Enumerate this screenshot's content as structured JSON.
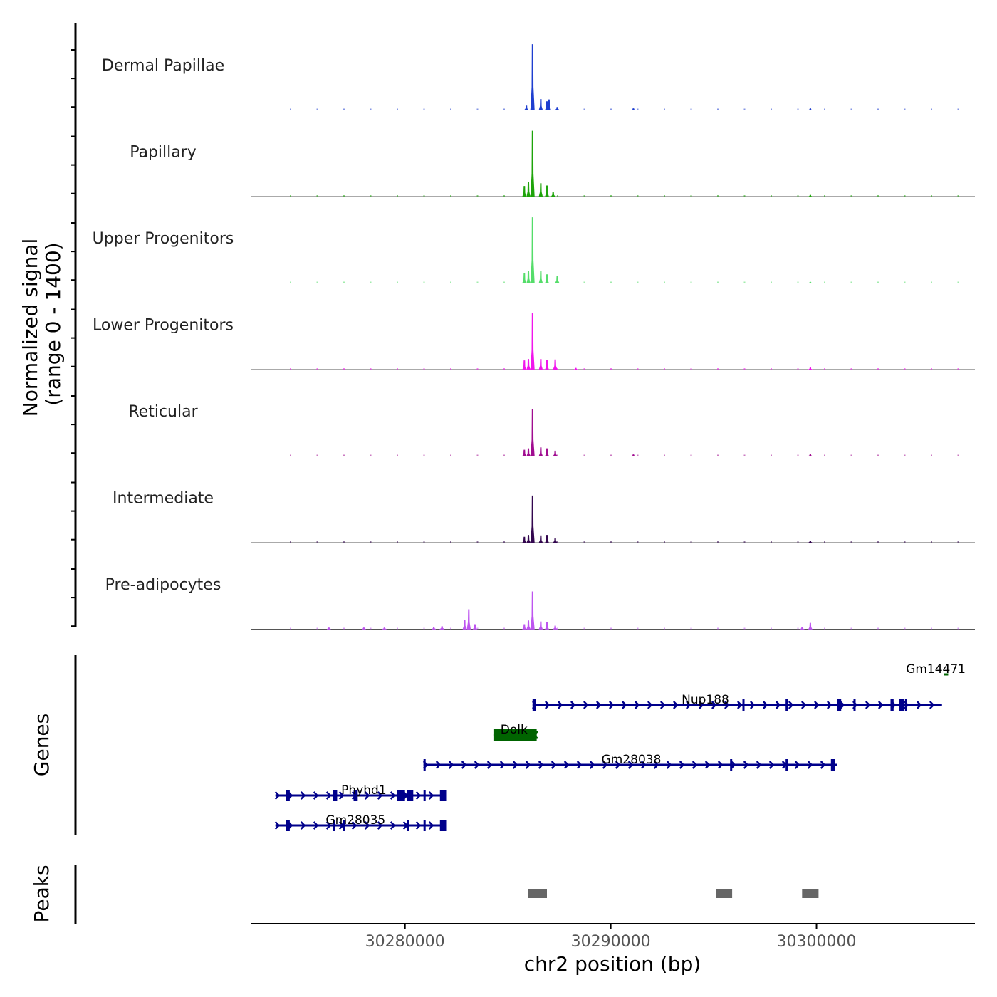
{
  "chart_data": {
    "type": "area",
    "title": "",
    "ylabel_line1": "Normalized signal",
    "ylabel_line2": "(range 0 - 1400)",
    "xlabel": "chr2 position (bp)",
    "chromosome": "chr2",
    "xlim": [
      30272500,
      30307700
    ],
    "ylim": [
      0,
      1400
    ],
    "x_ticks": [
      30280000,
      30290000,
      30300000
    ],
    "x_tick_labels": [
      "30280000",
      "30290000",
      "30300000"
    ],
    "tracks": [
      {
        "name": "Dermal Papillae",
        "color": "#1f3fd0",
        "peaks": [
          [
            30286200,
            1400,
            70
          ],
          [
            30286600,
            230,
            60
          ],
          [
            30286900,
            180,
            60
          ],
          [
            30287000,
            220,
            70
          ],
          [
            30285900,
            90,
            70
          ],
          [
            30287400,
            60,
            80
          ],
          [
            30291100,
            30,
            60
          ],
          [
            30299700,
            30,
            60
          ]
        ]
      },
      {
        "name": "Papillary",
        "color": "#1ea40a",
        "peaks": [
          [
            30286200,
            1400,
            70
          ],
          [
            30285800,
            220,
            70
          ],
          [
            30286000,
            300,
            60
          ],
          [
            30286600,
            280,
            60
          ],
          [
            30286900,
            230,
            60
          ],
          [
            30287200,
            100,
            70
          ],
          [
            30299700,
            30,
            60
          ]
        ]
      },
      {
        "name": "Upper Progenitors",
        "color": "#55dd6a",
        "peaks": [
          [
            30286200,
            1400,
            70
          ],
          [
            30285800,
            200,
            70
          ],
          [
            30286000,
            260,
            60
          ],
          [
            30286600,
            250,
            60
          ],
          [
            30286900,
            180,
            60
          ],
          [
            30287400,
            150,
            80
          ],
          [
            30299700,
            20,
            60
          ]
        ]
      },
      {
        "name": "Lower Progenitors",
        "color": "#f116ec",
        "peaks": [
          [
            30286200,
            1200,
            70
          ],
          [
            30285800,
            190,
            70
          ],
          [
            30286000,
            220,
            60
          ],
          [
            30286600,
            220,
            60
          ],
          [
            30286900,
            200,
            60
          ],
          [
            30287300,
            210,
            80
          ],
          [
            30288300,
            30,
            60
          ],
          [
            30299700,
            40,
            60
          ]
        ]
      },
      {
        "name": "Reticular",
        "color": "#a00d90",
        "peaks": [
          [
            30286200,
            1000,
            70
          ],
          [
            30285800,
            130,
            70
          ],
          [
            30286000,
            160,
            60
          ],
          [
            30286600,
            180,
            60
          ],
          [
            30286900,
            160,
            60
          ],
          [
            30287300,
            110,
            80
          ],
          [
            30291100,
            30,
            60
          ],
          [
            30299700,
            40,
            60
          ]
        ]
      },
      {
        "name": "Intermediate",
        "color": "#33074f",
        "peaks": [
          [
            30286200,
            1000,
            70
          ],
          [
            30285800,
            120,
            70
          ],
          [
            30286000,
            160,
            60
          ],
          [
            30286600,
            150,
            60
          ],
          [
            30286900,
            160,
            60
          ],
          [
            30287300,
            100,
            80
          ],
          [
            30299700,
            40,
            60
          ]
        ]
      },
      {
        "name": "Pre-adipocytes",
        "color": "#be55f0",
        "peaks": [
          [
            30286200,
            800,
            70
          ],
          [
            30285800,
            100,
            70
          ],
          [
            30286000,
            180,
            60
          ],
          [
            30286600,
            160,
            60
          ],
          [
            30286900,
            150,
            60
          ],
          [
            30287300,
            70,
            80
          ],
          [
            30283100,
            420,
            60
          ],
          [
            30282900,
            200,
            60
          ],
          [
            30283400,
            100,
            70
          ],
          [
            30281400,
            40,
            80
          ],
          [
            30281800,
            60,
            80
          ],
          [
            30278000,
            30,
            80
          ],
          [
            30276300,
            30,
            80
          ],
          [
            30279000,
            30,
            80
          ],
          [
            30299700,
            130,
            60
          ],
          [
            30299300,
            40,
            60
          ]
        ]
      }
    ],
    "genes_label": "Genes",
    "genes": [
      {
        "name": "Gm14471",
        "strand": "-",
        "color": "#006400",
        "start": 30306200,
        "end": 30306400,
        "row": 0,
        "exons": [],
        "label_x": 30305800
      },
      {
        "name": "Nup188",
        "strand": "+",
        "color": "#00008b",
        "start": 30286200,
        "end": 30306100,
        "row": 1,
        "exons": [
          [
            30286200,
            30286350
          ],
          [
            30296400,
            30296500
          ],
          [
            30298500,
            30298600
          ],
          [
            30301000,
            30301200
          ],
          [
            30301800,
            30301900
          ],
          [
            30303600,
            30303750
          ],
          [
            30304000,
            30304250
          ],
          [
            30304300,
            30304400
          ]
        ],
        "label_x": 30294600
      },
      {
        "name": "Dolk",
        "strand": "-",
        "color": "#006400",
        "start": 30284300,
        "end": 30286400,
        "row": 2,
        "exons": [
          [
            30284300,
            30286400
          ]
        ],
        "label_x": 30285300
      },
      {
        "name": "Gm28038",
        "strand": "+",
        "color": "#00008b",
        "start": 30280900,
        "end": 30301000,
        "row": 3,
        "exons": [
          [
            30280900,
            30281000
          ],
          [
            30295800,
            30295900
          ],
          [
            30298500,
            30298600
          ],
          [
            30300700,
            30300900
          ]
        ],
        "label_x": 30291000
      },
      {
        "name": "Phyhd1",
        "strand": "+",
        "color": "#00008b",
        "start": 30273700,
        "end": 30282000,
        "row": 4,
        "exons": [
          [
            30274200,
            30274400
          ],
          [
            30276500,
            30276700
          ],
          [
            30277500,
            30277700
          ],
          [
            30279600,
            30280000
          ],
          [
            30280100,
            30280400
          ],
          [
            30280900,
            30281000
          ],
          [
            30281700,
            30282000
          ]
        ],
        "label_x": 30278000
      },
      {
        "name": "Gm28035",
        "strand": "+",
        "color": "#00008b",
        "start": 30273700,
        "end": 30282000,
        "row": 5,
        "exons": [
          [
            30274200,
            30274400
          ],
          [
            30276500,
            30276600
          ],
          [
            30277000,
            30277100
          ],
          [
            30280100,
            30280200
          ],
          [
            30280900,
            30281000
          ],
          [
            30281700,
            30282000
          ]
        ],
        "label_x": 30277600
      }
    ],
    "peaks_label": "Peaks",
    "peak_regions": [
      [
        30286000,
        30286900
      ],
      [
        30295100,
        30295900
      ],
      [
        30299300,
        30300100
      ]
    ],
    "peak_color": "#666666"
  }
}
